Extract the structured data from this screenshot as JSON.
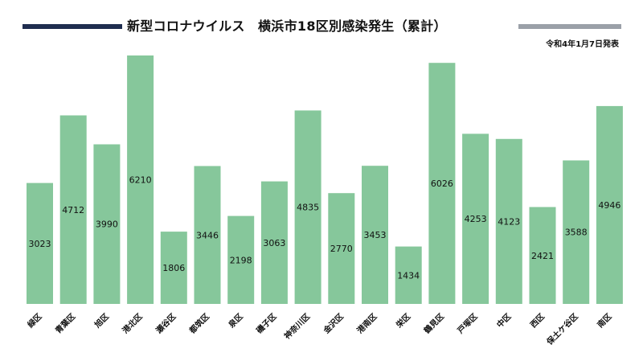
{
  "header": {
    "title": "新型コロナウイルス　横浜市18区別感染発生（累計）",
    "date": "令和4年1月7日発表"
  },
  "colors": {
    "bar": "#86c79b",
    "title_rule_left": "#1f2d4f",
    "title_rule_right": "#9ba0a8"
  },
  "chart_data": {
    "type": "bar",
    "categories": [
      "緑区",
      "青葉区",
      "旭区",
      "港北区",
      "瀬谷区",
      "都筑区",
      "泉区",
      "磯子区",
      "神奈川区",
      "金沢区",
      "港南区",
      "栄区",
      "鶴見区",
      "戸塚区",
      "中区",
      "西区",
      "保土ケ谷区",
      "南区"
    ],
    "values": [
      3023,
      4712,
      3990,
      6210,
      1806,
      3446,
      2198,
      3063,
      4835,
      2770,
      3453,
      1434,
      6026,
      4253,
      4123,
      2421,
      3588,
      4946
    ],
    "ylim": [
      0,
      6500
    ],
    "data_labels": true,
    "grid": false,
    "legend": "none"
  }
}
